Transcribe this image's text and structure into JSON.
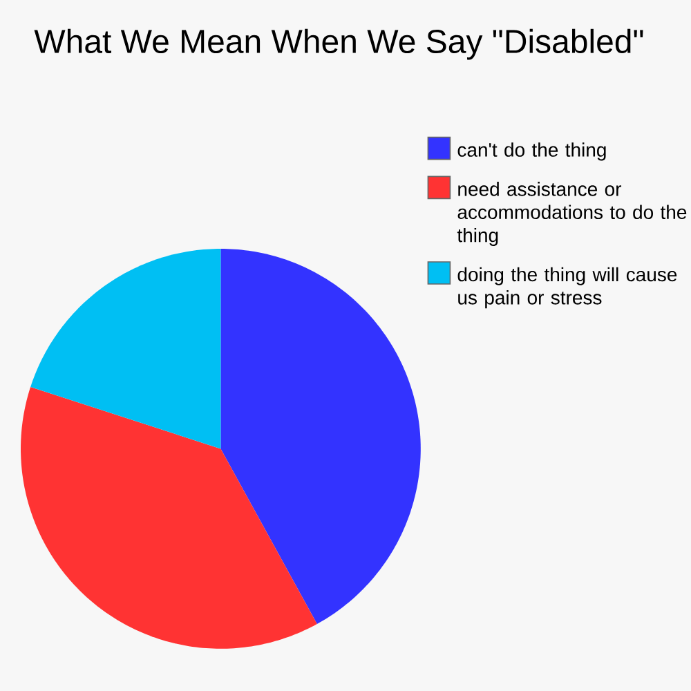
{
  "chart_data": {
    "type": "pie",
    "title": "What We Mean When We Say \"Disabled\"",
    "categories": [
      "can't do the thing",
      "need assistance or accommodations to do the thing",
      "doing the thing will cause us pain or stress"
    ],
    "values": [
      42,
      38,
      20
    ],
    "colors": [
      "#3333ff",
      "#ff3333",
      "#00bff3"
    ],
    "legend": "right"
  }
}
